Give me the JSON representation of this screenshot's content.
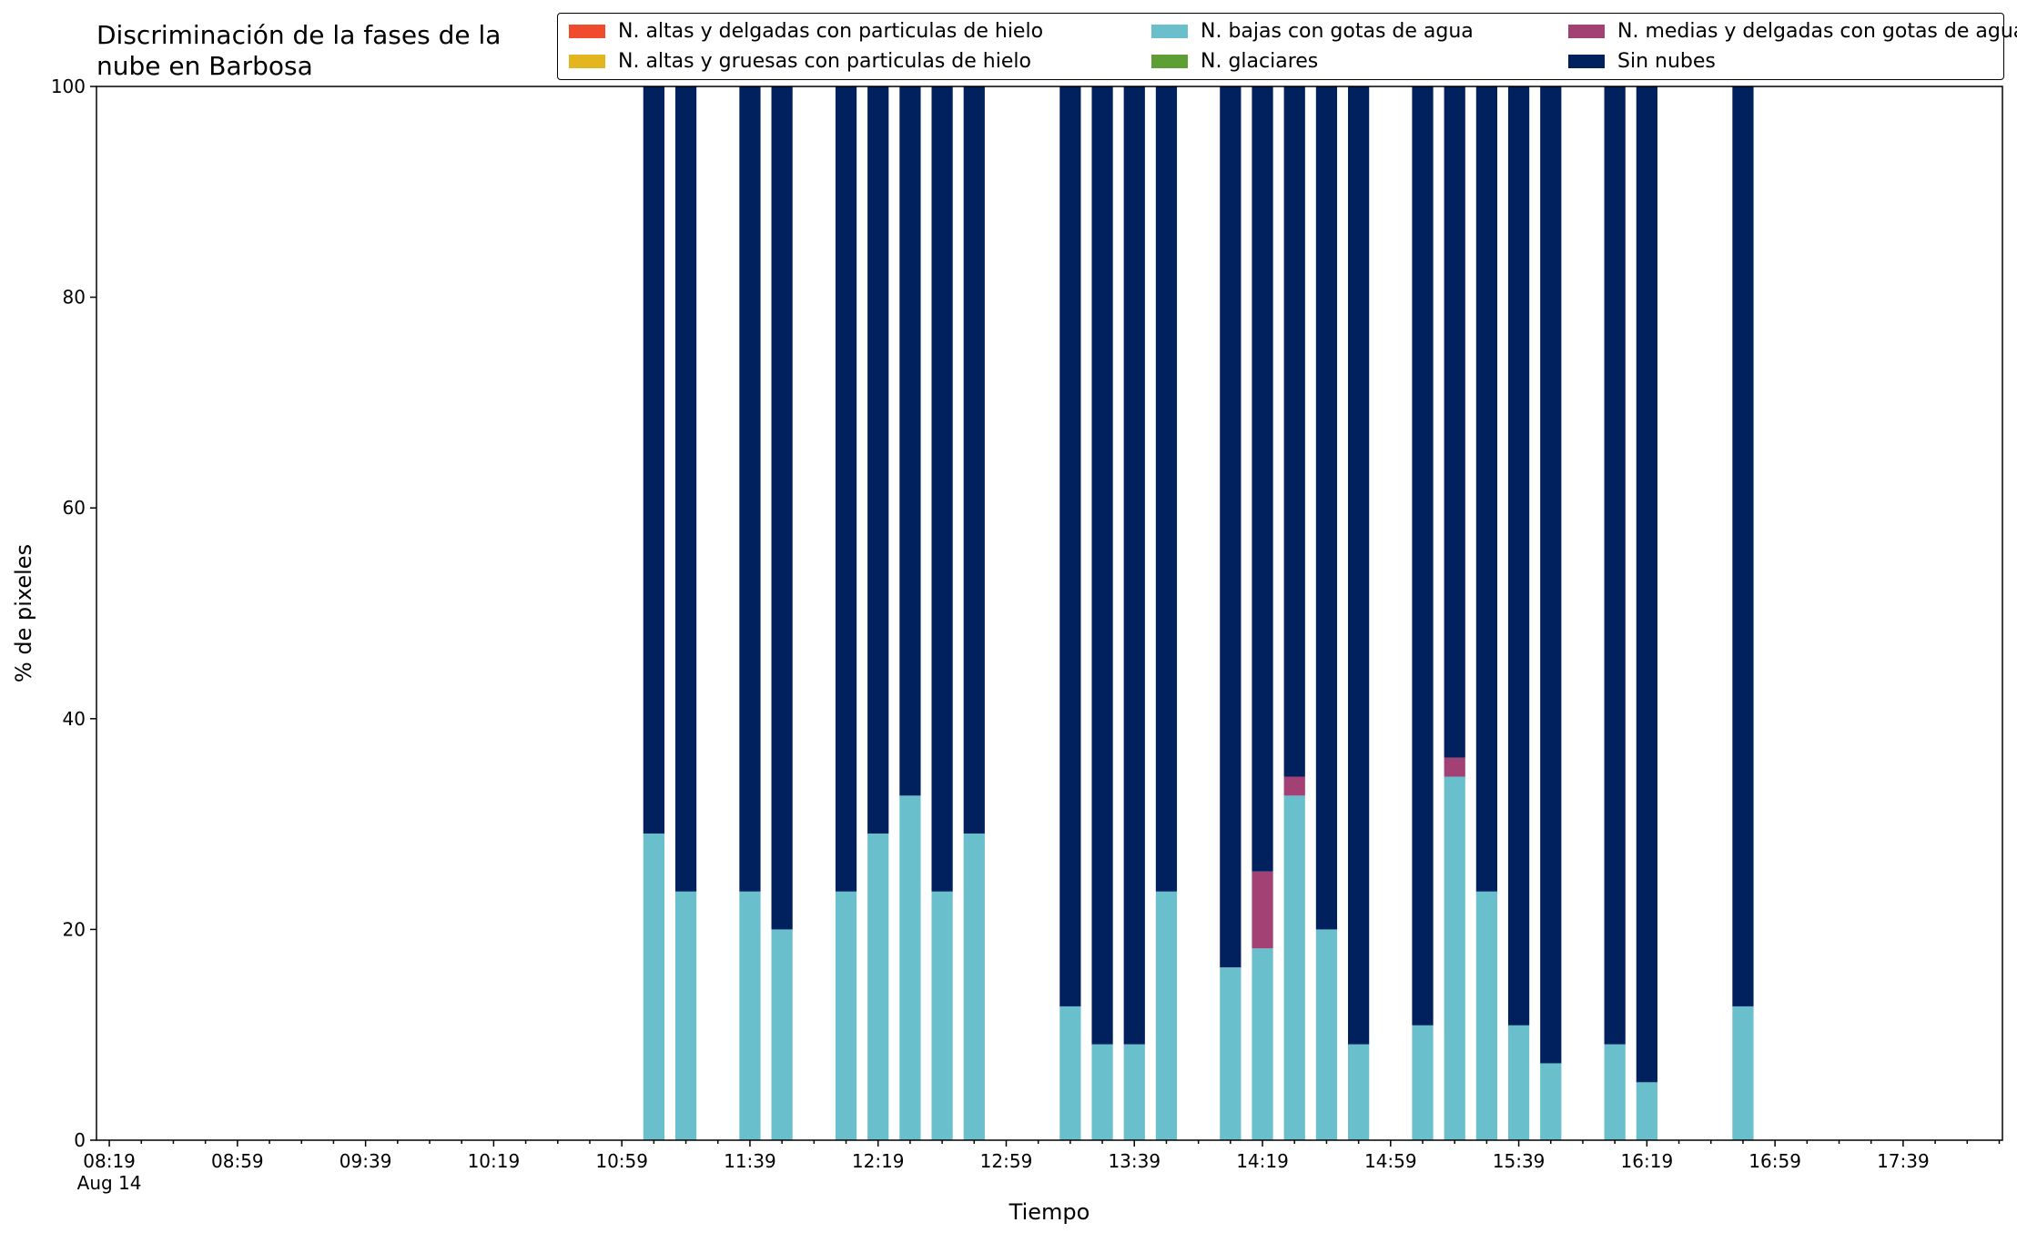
{
  "chart_data": {
    "type": "bar",
    "stacked": true,
    "title": "Discriminación de la fases de la nube en Barbosa",
    "xlabel": "Tiempo",
    "ylabel": "% de pixeles",
    "ylim": [
      0,
      100
    ],
    "y_ticks": [
      "0",
      "20",
      "40",
      "60",
      "80",
      "100"
    ],
    "x_tick_labels": [
      "08:19",
      "08:59",
      "09:39",
      "10:19",
      "10:59",
      "11:39",
      "12:19",
      "12:59",
      "13:39",
      "14:19",
      "14:59",
      "15:39",
      "16:19",
      "16:59",
      "17:39"
    ],
    "x_date_label": "Aug 14",
    "x_range": [
      "08:15",
      "18:10"
    ],
    "legend_position": "top-right",
    "grid": false,
    "categories": [
      "11:09",
      "11:19",
      "11:39",
      "11:49",
      "12:09",
      "12:19",
      "12:29",
      "12:39",
      "12:49",
      "13:19",
      "13:29",
      "13:39",
      "13:49",
      "14:09",
      "14:19",
      "14:29",
      "14:39",
      "14:49",
      "15:09",
      "15:19",
      "15:29",
      "15:39",
      "15:49",
      "16:09",
      "16:19",
      "16:49"
    ],
    "series": [
      {
        "name": "N. altas y delgadas con particulas de hielo",
        "color": "#ef4b2c",
        "values": [
          0,
          0,
          0,
          0,
          0,
          0,
          0,
          0,
          0,
          0,
          0,
          0,
          0,
          0,
          0,
          0,
          0,
          0,
          0,
          0,
          0,
          0,
          0,
          0,
          0,
          0
        ]
      },
      {
        "name": "N. altas y gruesas con particulas de hielo",
        "color": "#e3b51f",
        "values": [
          0,
          0,
          0,
          0,
          0,
          0,
          0,
          0,
          0,
          0,
          0,
          0,
          0,
          0,
          0,
          0,
          0,
          0,
          0,
          0,
          0,
          0,
          0,
          0,
          0,
          0
        ]
      },
      {
        "name": "N. bajas con gotas de agua",
        "color": "#69bfcc",
        "values": [
          29.1,
          23.6,
          23.6,
          20.0,
          23.6,
          29.1,
          32.7,
          23.6,
          29.1,
          12.7,
          9.1,
          9.1,
          23.6,
          16.4,
          18.2,
          32.7,
          20.0,
          9.1,
          10.9,
          34.5,
          23.6,
          10.9,
          7.3,
          9.1,
          5.5,
          12.7
        ]
      },
      {
        "name": "N. glaciares",
        "color": "#5d9e35",
        "values": [
          0,
          0,
          0,
          0,
          0,
          0,
          0,
          0,
          0,
          0,
          0,
          0,
          0,
          0,
          0,
          0,
          0,
          0,
          0,
          0,
          0,
          0,
          0,
          0,
          0,
          0
        ]
      },
      {
        "name": "N. medias y delgadas con gotas de agua",
        "color": "#a34074",
        "values": [
          0,
          0,
          0,
          0,
          0,
          0,
          0,
          0,
          0,
          0,
          0,
          0,
          0,
          0,
          7.3,
          1.8,
          0,
          0,
          0,
          1.8,
          0,
          0,
          0,
          0,
          0,
          0
        ]
      },
      {
        "name": "Sin nubes",
        "color": "#00215e",
        "values": [
          70.9,
          76.4,
          76.4,
          80.0,
          76.4,
          70.9,
          67.3,
          76.4,
          70.9,
          87.3,
          90.9,
          90.9,
          76.4,
          83.6,
          74.5,
          65.5,
          80.0,
          90.9,
          89.1,
          63.7,
          76.4,
          89.1,
          92.7,
          90.9,
          94.5,
          87.3
        ]
      }
    ]
  }
}
